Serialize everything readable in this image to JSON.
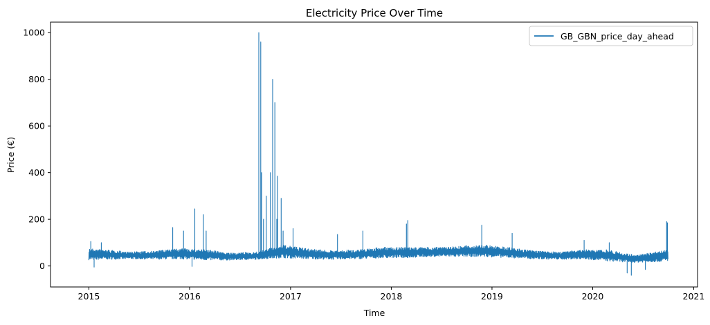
{
  "chart_data": {
    "type": "line",
    "title": "Electricity Price Over Time",
    "xlabel": "Time",
    "ylabel": "Price (€)",
    "xlim": [
      "2014-08-15",
      "2021-01-15"
    ],
    "ylim": [
      -90,
      1045
    ],
    "x_ticks": [
      "2015",
      "2016",
      "2017",
      "2018",
      "2019",
      "2020",
      "2021"
    ],
    "y_ticks": [
      0,
      200,
      400,
      600,
      800,
      1000
    ],
    "grid": false,
    "legend_position": "top-right",
    "series": [
      {
        "name": "GB_GBN_price_day_ahead",
        "color": "#1f77b4",
        "baseline": {
          "x": [
            "2015-01-01",
            "2015-03-01",
            "2015-06-01",
            "2015-09-01",
            "2015-12-01",
            "2016-03-01",
            "2016-06-01",
            "2016-09-01",
            "2016-12-01",
            "2017-03-01",
            "2017-06-01",
            "2017-09-01",
            "2017-12-01",
            "2018-03-01",
            "2018-06-01",
            "2018-09-01",
            "2018-12-01",
            "2019-03-01",
            "2019-06-01",
            "2019-09-01",
            "2019-12-01",
            "2020-03-01",
            "2020-06-01",
            "2020-09-30"
          ],
          "low": [
            25,
            28,
            30,
            28,
            30,
            25,
            25,
            28,
            35,
            30,
            28,
            30,
            35,
            35,
            40,
            40,
            40,
            35,
            30,
            28,
            30,
            20,
            15,
            20
          ],
          "high": [
            75,
            70,
            60,
            65,
            75,
            70,
            55,
            60,
            90,
            75,
            65,
            70,
            80,
            80,
            80,
            85,
            90,
            80,
            65,
            60,
            70,
            70,
            45,
            70
          ]
        },
        "peaks": {
          "x": [
            "2015-01-08",
            "2015-02-15",
            "2015-11-01",
            "2015-12-10",
            "2016-01-20",
            "2016-02-20",
            "2016-03-01",
            "2016-09-08",
            "2016-09-15",
            "2016-09-18",
            "2016-09-25",
            "2016-10-05",
            "2016-10-20",
            "2016-10-28",
            "2016-11-05",
            "2016-11-12",
            "2016-11-15",
            "2016-11-28",
            "2016-12-05",
            "2017-01-10",
            "2017-06-20",
            "2017-09-20",
            "2018-02-25",
            "2018-03-02",
            "2018-11-25",
            "2019-03-15",
            "2019-12-01",
            "2020-03-01",
            "2020-09-25",
            "2020-09-28"
          ],
          "y": [
            105,
            100,
            165,
            150,
            245,
            220,
            150,
            1000,
            960,
            400,
            200,
            300,
            400,
            800,
            700,
            200,
            385,
            290,
            150,
            160,
            135,
            150,
            180,
            195,
            175,
            140,
            110,
            100,
            190,
            185
          ]
        },
        "troughs": {
          "x": [
            "2015-01-20",
            "2016-01-10",
            "2020-05-05",
            "2020-05-20",
            "2020-07-10"
          ],
          "y": [
            -5,
            -2,
            -30,
            -40,
            -15
          ]
        }
      }
    ]
  }
}
